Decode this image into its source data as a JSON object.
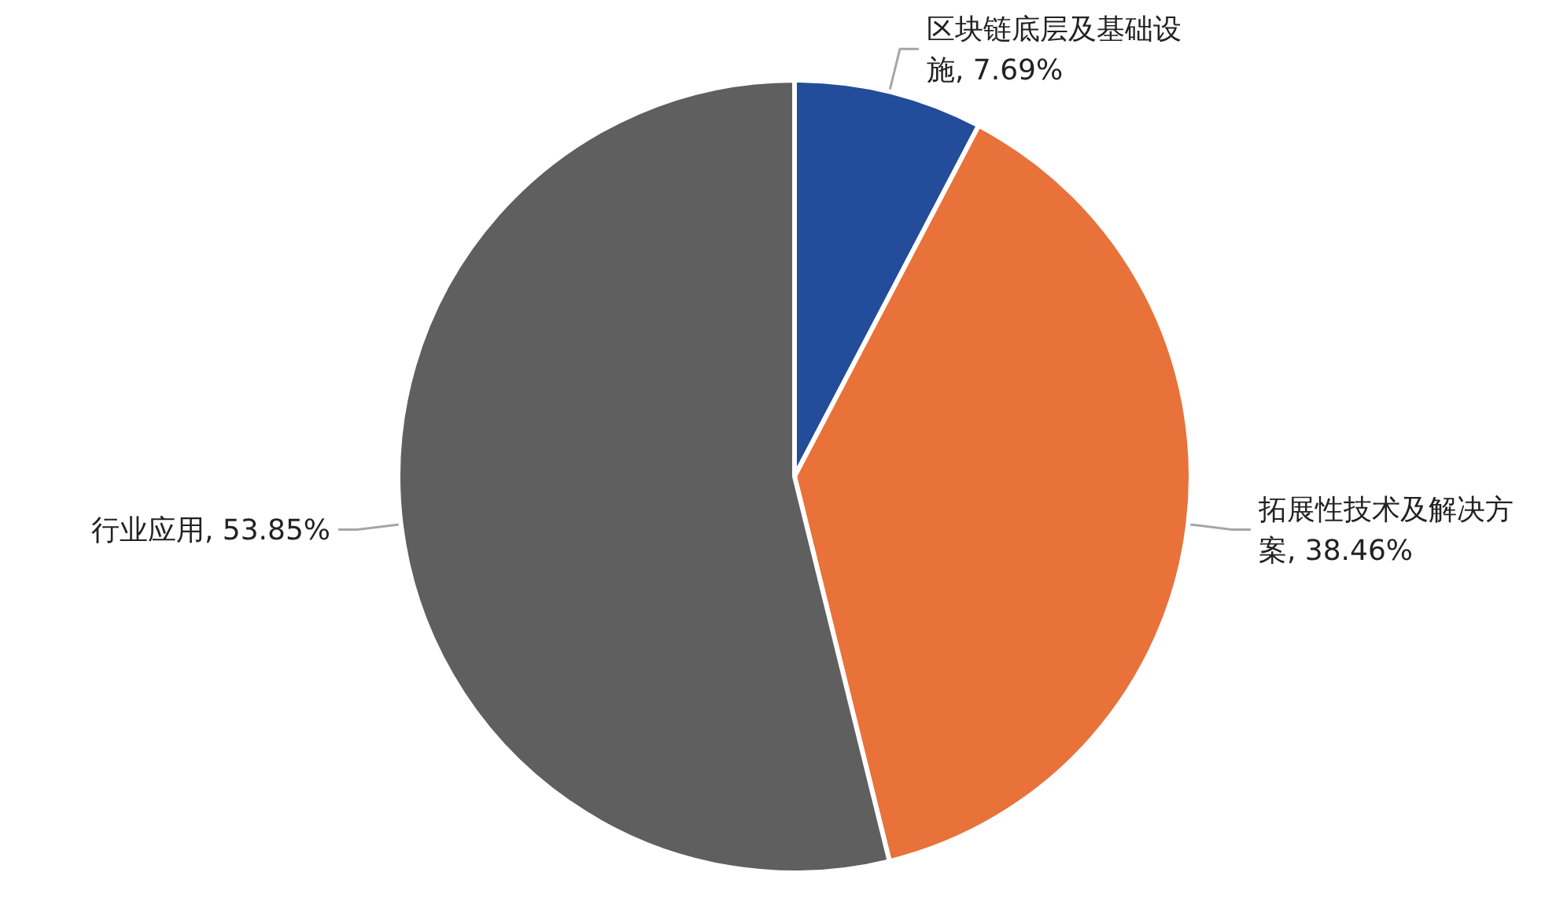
{
  "chart_data": {
    "type": "pie",
    "categories": [
      "区块链底层及基础设施",
      "拓展性技术及解决方案",
      "行业应用"
    ],
    "values": [
      7.69,
      38.46,
      53.85
    ],
    "value_labels": [
      "7.69%",
      "38.46%",
      "53.85%"
    ],
    "colors": [
      "#234c9a",
      "#e9713a",
      "#5f5f5f"
    ],
    "legend": false
  }
}
